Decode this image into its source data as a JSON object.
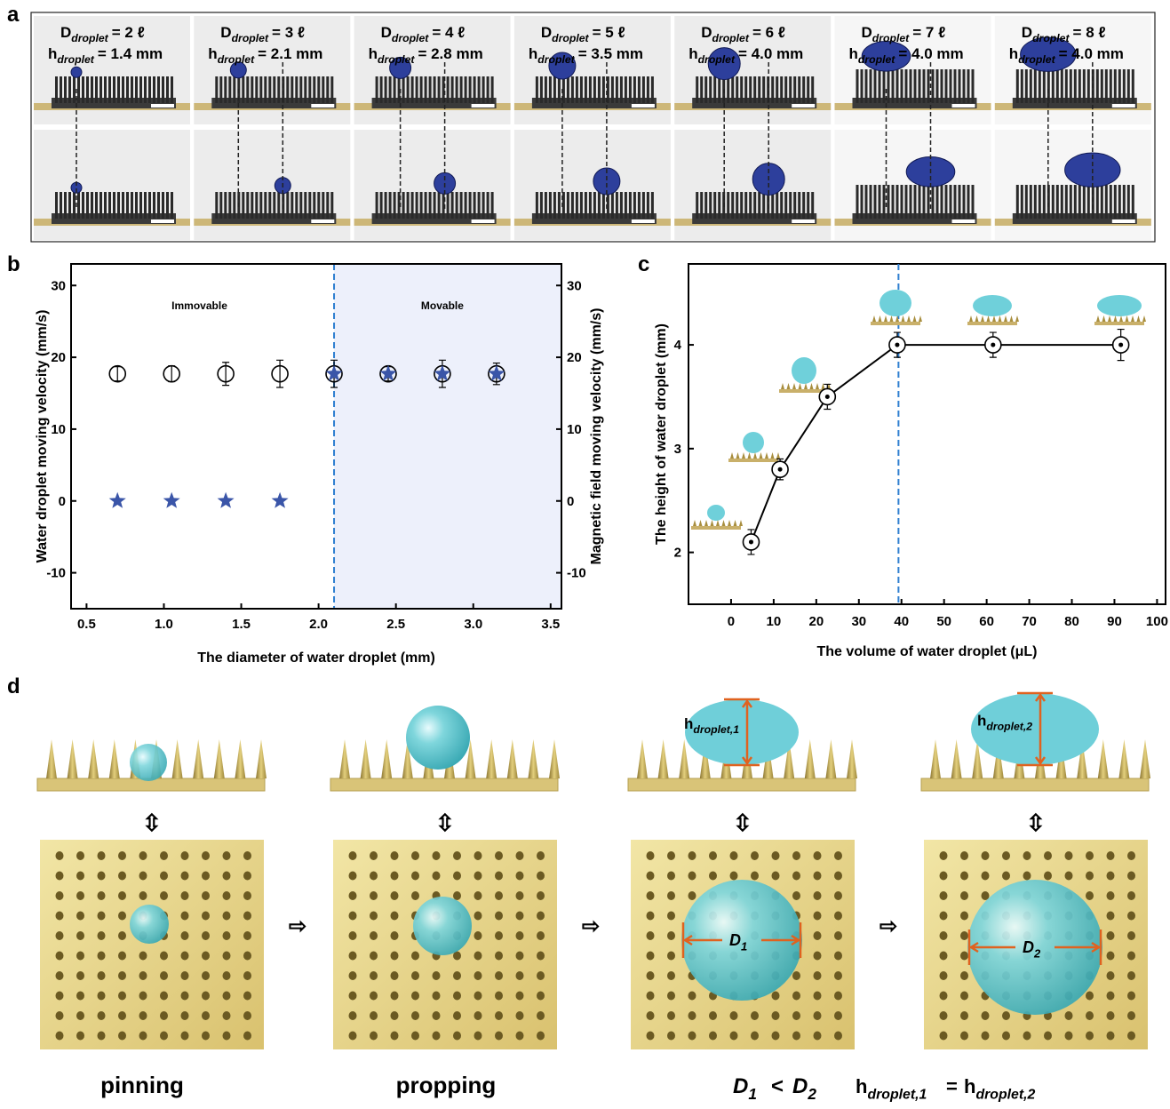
{
  "panel_labels": [
    "a",
    "b",
    "c",
    "d"
  ],
  "panel_a": {
    "columns": [
      {
        "diameter": [
          "D",
          "droplet",
          "= 2 ℓ"
        ],
        "height": [
          "h",
          "droplet",
          "= 1.4 mm"
        ]
      },
      {
        "diameter": [
          "D",
          "droplet",
          "= 3 ℓ"
        ],
        "height": [
          "h",
          "droplet",
          "= 2.1 mm"
        ]
      },
      {
        "diameter": [
          "D",
          "droplet",
          "= 4 ℓ"
        ],
        "height": [
          "h",
          "droplet",
          "= 2.8 mm"
        ]
      },
      {
        "diameter": [
          "D",
          "droplet",
          "= 5 ℓ"
        ],
        "height": [
          "h",
          "droplet",
          "= 3.5 mm"
        ]
      },
      {
        "diameter": [
          "D",
          "droplet",
          "= 6 ℓ"
        ],
        "height": [
          "h",
          "droplet",
          "= 4.0 mm"
        ]
      },
      {
        "diameter": [
          "D",
          "droplet",
          "= 7 ℓ"
        ],
        "height": [
          "h",
          "droplet",
          "= 4.0 mm"
        ]
      },
      {
        "diameter": [
          "D",
          "droplet",
          "= 8 ℓ"
        ],
        "height": [
          "h",
          "droplet",
          "= 4.0 mm"
        ]
      }
    ]
  },
  "chart_data": [
    {
      "type": "scatter",
      "xlabel": "The diameter of water droplet (mm)",
      "ylabel": "Water droplet moving velocity (mm/s)",
      "y2label": "Magnetic field moving velocity (mm/s)",
      "annotations": [
        "Immovable",
        "Movable"
      ],
      "threshold_x": 2.1,
      "region_color": "#edf0fb",
      "threshold_color": "#2f7fd0",
      "xlim": [
        0.4,
        3.57
      ],
      "xticks": [
        0.5,
        {
          "value": 1,
          "label": "1.0"
        },
        1.5,
        {
          "value": 2,
          "label": "2.0"
        },
        2.5,
        {
          "value": 3,
          "label": "3.0"
        },
        3.5
      ],
      "ylim": [
        -15,
        33
      ],
      "yticks": [
        -10,
        0,
        10,
        20,
        30
      ],
      "y2lim": [
        -15,
        33
      ],
      "y2ticks": [
        -10,
        0,
        10,
        20,
        30
      ],
      "series": [
        {
          "color": "#3a55a8",
          "marker": "star",
          "x": [
            0.7,
            1.05,
            1.4,
            1.75,
            2.1,
            2.45,
            2.8,
            3.15
          ],
          "values": [
            0,
            0,
            0,
            0,
            17.7,
            17.7,
            17.7,
            17.7
          ]
        },
        {
          "color": "#000000",
          "marker": "circle",
          "axis": "y2",
          "x": [
            0.7,
            1.05,
            1.4,
            1.75,
            2.1,
            2.45,
            2.8,
            3.15
          ],
          "values": [
            17.7,
            17.7,
            17.7,
            17.7,
            17.7,
            17.7,
            17.7,
            17.7
          ],
          "errors": [
            1.0,
            1.1,
            1.6,
            1.9,
            1.9,
            1.0,
            1.9,
            1.5
          ]
        }
      ]
    },
    {
      "type": "line",
      "xlabel": "The volume of water droplet (μL)",
      "ylabel": "The height of water droplet (mm)",
      "threshold_x": 39.3,
      "threshold_color": "#2f7fd0",
      "xlim": [
        -10,
        102
      ],
      "xticks": [
        0,
        10,
        20,
        30,
        40,
        50,
        60,
        70,
        80,
        90,
        100
      ],
      "ylim": [
        1.5,
        4.78
      ],
      "yticks": [
        2,
        3,
        4
      ],
      "x": [
        4.7,
        11.5,
        22.6,
        39.0,
        61.5,
        91.5
      ],
      "values": [
        2.1,
        2.8,
        3.5,
        4.0,
        4.0,
        4.0
      ],
      "errors": [
        0.12,
        0.1,
        0.12,
        0.12,
        0.12,
        0.15
      ],
      "color": "#000000"
    }
  ],
  "panel_d": {
    "captions": [
      "pinning",
      "propping"
    ],
    "height_marks": [
      [
        "h",
        "droplet,1"
      ],
      [
        "h",
        "droplet,2"
      ]
    ],
    "diameter_marks": [
      [
        "D",
        "1"
      ],
      [
        "D",
        "2"
      ]
    ],
    "inequality": {
      "left": [
        "D",
        "1"
      ],
      "op": "<",
      "right": [
        "D",
        "2"
      ]
    },
    "equality": {
      "left": [
        "h",
        "droplet,1"
      ],
      "op": "=",
      "right": [
        "h",
        "droplet,2"
      ]
    }
  }
}
